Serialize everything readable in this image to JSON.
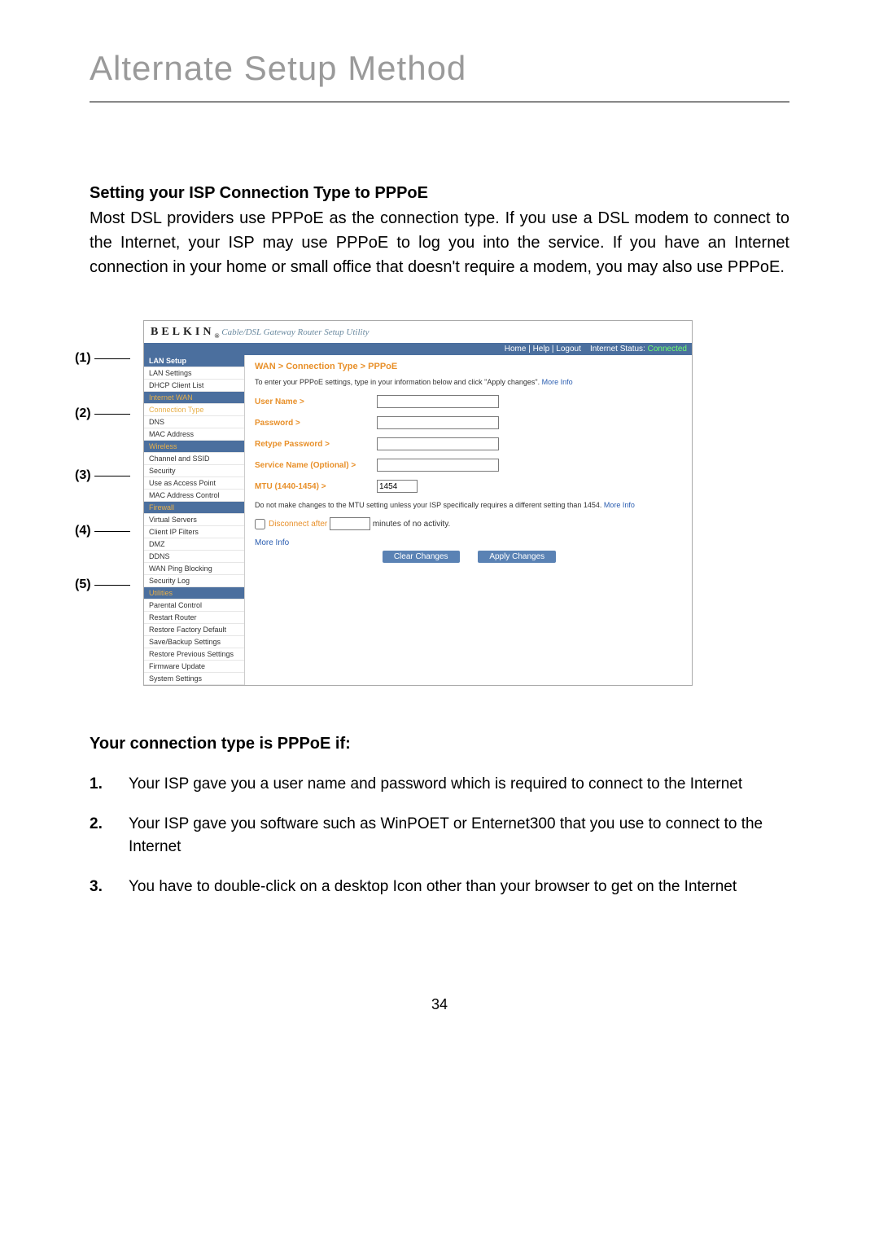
{
  "page": {
    "title": "Alternate Setup Method",
    "heading1": "Setting your ISP Connection Type to PPPoE",
    "intro": "Most DSL providers use PPPoE as the connection type. If you use a DSL modem to connect to the Internet, your ISP may use PPPoE to log you into the service. If you have an Internet connection in your home or small office that doesn't require a modem, you may also use PPPoE.",
    "heading2": "Your connection type is PPPoE if:",
    "criteria": [
      "Your ISP gave you a user name and password which is required to connect to the Internet",
      "Your ISP gave you software such as WinPOET or Enternet300 that you use to connect to the Internet",
      "You have to double-click on a desktop Icon other than your browser to get on the Internet"
    ],
    "page_number": "34"
  },
  "callouts": {
    "1": "(1)",
    "2": "(2)",
    "3": "(3)",
    "4": "(4)",
    "5": "(5)"
  },
  "router": {
    "brand": "BELKIN",
    "brand_sub": "Cable/DSL Gateway Router Setup Utility",
    "topbar": {
      "home": "Home",
      "help": "Help",
      "logout": "Logout",
      "status_label": "Internet Status:",
      "status_value": "Connected"
    },
    "sidebar": [
      {
        "label": "LAN Setup",
        "type": "head"
      },
      {
        "label": "LAN Settings",
        "type": "item"
      },
      {
        "label": "DHCP Client List",
        "type": "item"
      },
      {
        "label": "Internet WAN",
        "type": "active"
      },
      {
        "label": "Connection Type",
        "type": "sub-active"
      },
      {
        "label": "DNS",
        "type": "item"
      },
      {
        "label": "MAC Address",
        "type": "item"
      },
      {
        "label": "Wireless",
        "type": "active"
      },
      {
        "label": "Channel and SSID",
        "type": "item"
      },
      {
        "label": "Security",
        "type": "item"
      },
      {
        "label": "Use as Access Point",
        "type": "item"
      },
      {
        "label": "MAC Address Control",
        "type": "item"
      },
      {
        "label": "Firewall",
        "type": "active"
      },
      {
        "label": "Virtual Servers",
        "type": "item"
      },
      {
        "label": "Client IP Filters",
        "type": "item"
      },
      {
        "label": "DMZ",
        "type": "item"
      },
      {
        "label": "DDNS",
        "type": "item"
      },
      {
        "label": "WAN Ping Blocking",
        "type": "item"
      },
      {
        "label": "Security Log",
        "type": "item"
      },
      {
        "label": "Utilities",
        "type": "active"
      },
      {
        "label": "Parental Control",
        "type": "item"
      },
      {
        "label": "Restart Router",
        "type": "item"
      },
      {
        "label": "Restore Factory Default",
        "type": "item"
      },
      {
        "label": "Save/Backup Settings",
        "type": "item"
      },
      {
        "label": "Restore Previous Settings",
        "type": "item"
      },
      {
        "label": "Firmware Update",
        "type": "item"
      },
      {
        "label": "System Settings",
        "type": "item"
      }
    ],
    "main": {
      "breadcrumb": "WAN > Connection Type > PPPoE",
      "desc_pre": "To enter your PPPoE settings, type in your information below and click \"Apply changes\". ",
      "more_info": "More Info",
      "fields": {
        "username": "User Name >",
        "password": "Password >",
        "retype": "Retype Password >",
        "service": "Service Name (Optional) >",
        "mtu": "MTU (1440-1454) >",
        "mtu_value": "1454",
        "mtu_note_pre": "Do not make changes to the MTU setting unless your ISP specifically requires a different setting than 1454. ",
        "disconnect_label": "Disconnect after",
        "disconnect_suffix": "minutes of no activity."
      },
      "more_info2": "More Info",
      "buttons": {
        "clear": "Clear Changes",
        "apply": "Apply Changes"
      }
    }
  }
}
